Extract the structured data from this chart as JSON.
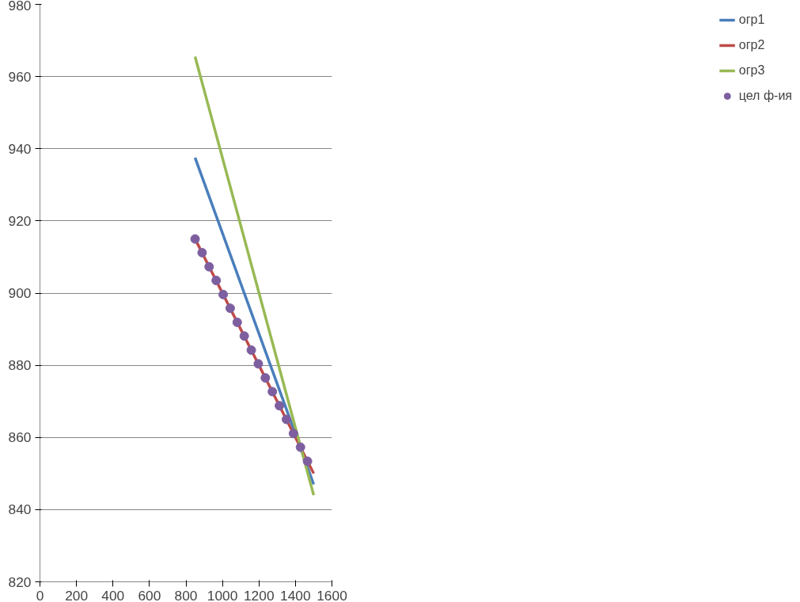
{
  "chart_data": {
    "type": "line",
    "xlim": [
      0,
      1600
    ],
    "xticks": [
      0,
      200,
      400,
      600,
      800,
      1000,
      1200,
      1400,
      1600
    ],
    "ylim": [
      820,
      980
    ],
    "yticks": [
      820,
      840,
      860,
      880,
      900,
      920,
      940,
      960,
      980
    ],
    "grid": "y",
    "legend": "right",
    "series": [
      {
        "name": "огр1",
        "color": "#4a7ebb",
        "x": [
          850,
          1500
        ],
        "values": [
          937.5,
          847
        ]
      },
      {
        "name": "огр2",
        "color": "#be4b48",
        "x": [
          850,
          1500
        ],
        "values": [
          915,
          850
        ]
      },
      {
        "name": "огр3",
        "color": "#98b954",
        "x": [
          850,
          1500
        ],
        "values": [
          965.5,
          844
        ]
      },
      {
        "name": "цел ф-ия",
        "color": "#7d5fa0",
        "type": "scatter",
        "marker": "circle",
        "x": [
          850,
          888.5,
          927,
          965.5,
          1004,
          1042.5,
          1081,
          1119.5,
          1158,
          1196.5,
          1235,
          1273.5,
          1312,
          1350.5,
          1389,
          1427.5,
          1466
        ],
        "values": [
          915,
          911.2,
          907.3,
          903.5,
          899.6,
          895.8,
          891.9,
          888.1,
          884.2,
          880.4,
          876.5,
          872.7,
          868.8,
          865,
          861.1,
          857.3,
          853.4
        ]
      }
    ]
  }
}
